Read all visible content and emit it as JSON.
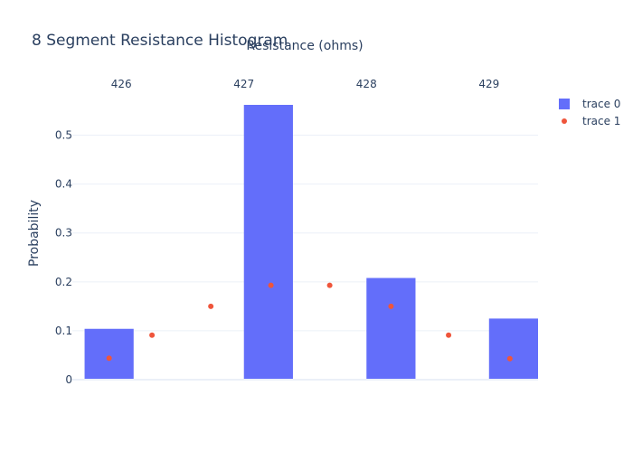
{
  "chart_data": {
    "type": "bar",
    "title": "8 Segment Resistance Histogram",
    "xlabel": "Resistance (ohms)",
    "ylabel": "Probability",
    "xaxis_side": "top",
    "xlim": [
      425.6,
      429.4
    ],
    "ylim": [
      0,
      0.562
    ],
    "x_ticks": [
      426,
      427,
      428,
      429
    ],
    "y_ticks": [
      0,
      0.1,
      0.2,
      0.3,
      0.4,
      0.5
    ],
    "y_tick_labels": [
      "0",
      "0.1",
      "0.2",
      "0.3",
      "0.4",
      "0.5"
    ],
    "grid": true,
    "legend_position": "top-right",
    "series": [
      {
        "name": "trace 0",
        "type": "bar",
        "color": "#636efa",
        "bar_width": 0.4,
        "x": [
          425.9,
          427.2,
          428.2,
          429.2
        ],
        "values": [
          0.104,
          0.562,
          0.208,
          0.125
        ]
      },
      {
        "name": "trace 1",
        "type": "scatter",
        "color": "#ef553b",
        "x": [
          425.9,
          426.25,
          426.73,
          427.22,
          427.7,
          428.2,
          428.67,
          429.17
        ],
        "values": [
          0.044,
          0.091,
          0.15,
          0.193,
          0.193,
          0.15,
          0.091,
          0.043
        ]
      }
    ]
  }
}
